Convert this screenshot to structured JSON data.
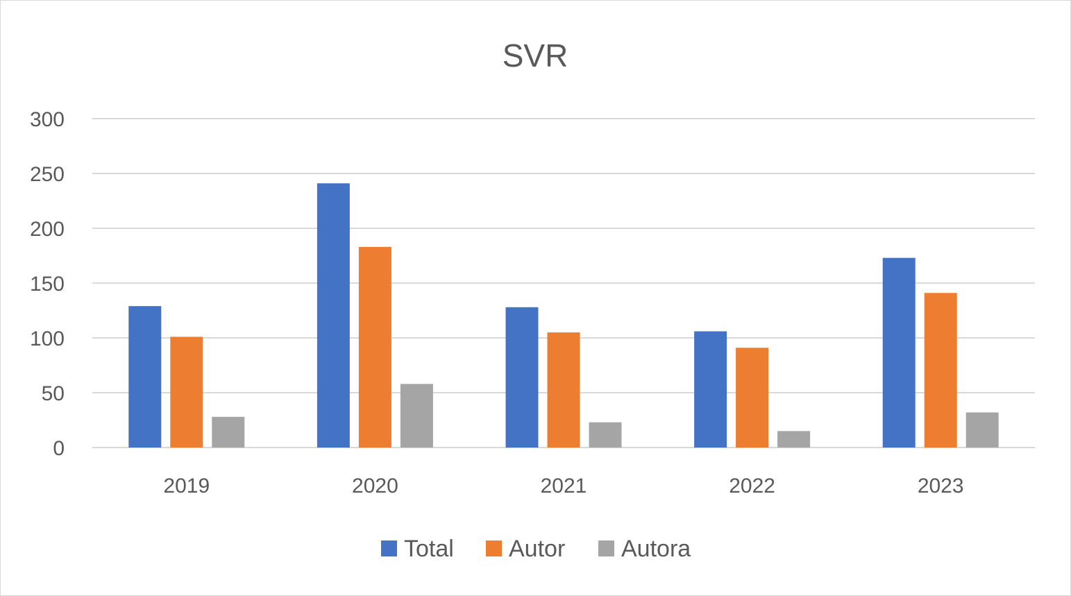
{
  "chart_data": {
    "type": "bar",
    "title": "SVR",
    "xlabel": "",
    "ylabel": "",
    "categories": [
      "2019",
      "2020",
      "2021",
      "2022",
      "2023"
    ],
    "series": [
      {
        "name": "Total",
        "color": "#4472C4",
        "values": [
          129,
          241,
          128,
          106,
          173
        ]
      },
      {
        "name": "Autor",
        "color": "#ED7D31",
        "values": [
          101,
          183,
          105,
          91,
          141
        ]
      },
      {
        "name": "Autora",
        "color": "#A5A5A5",
        "values": [
          28,
          58,
          23,
          15,
          32
        ]
      }
    ],
    "ylim": [
      0,
      300
    ],
    "yticks": [
      "0",
      "50",
      "100",
      "150",
      "200",
      "250",
      "300"
    ],
    "grid": true,
    "legend_position": "bottom"
  }
}
